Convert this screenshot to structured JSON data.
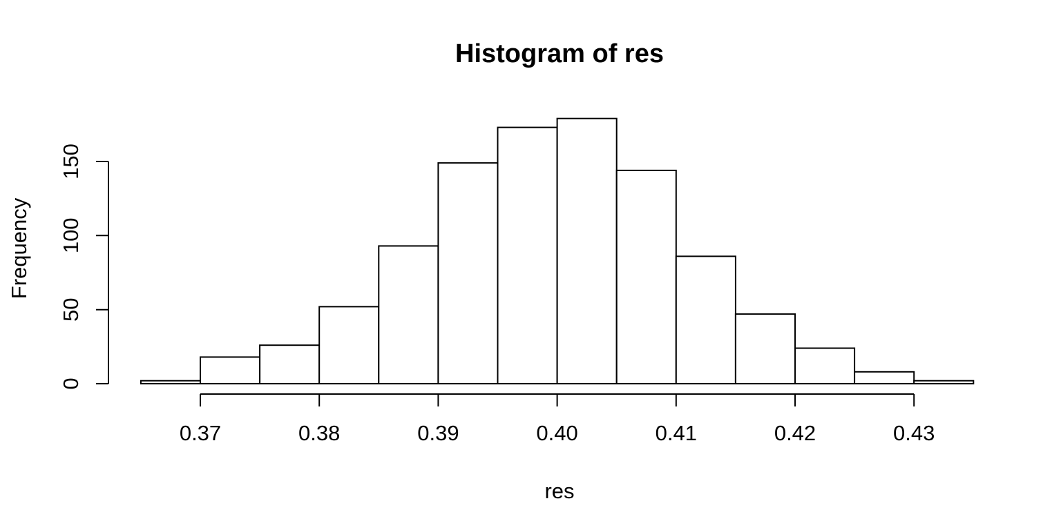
{
  "chart_data": {
    "type": "bar",
    "subtype": "histogram",
    "title": "Histogram of res",
    "xlabel": "res",
    "ylabel": "Frequency",
    "bin_start": 0.365,
    "bin_width": 0.005,
    "frequencies": [
      2,
      18,
      26,
      52,
      93,
      149,
      173,
      179,
      144,
      86,
      47,
      24,
      8,
      2
    ],
    "x_ticks": {
      "values": [
        0.37,
        0.38,
        0.39,
        0.4,
        0.41,
        0.42,
        0.43
      ],
      "labels": [
        "0.37",
        "0.38",
        "0.39",
        "0.40",
        "0.41",
        "0.42",
        "0.43"
      ]
    },
    "y_ticks": {
      "values": [
        0,
        50,
        100,
        150
      ],
      "labels": [
        "0",
        "50",
        "100",
        "150"
      ]
    },
    "xlim": [
      0.365,
      0.435
    ],
    "ylim": [
      0,
      180
    ],
    "grid": false,
    "legend": "none",
    "bar_fill": "#ffffff",
    "line_color": "#000000",
    "background": "#ffffff"
  }
}
